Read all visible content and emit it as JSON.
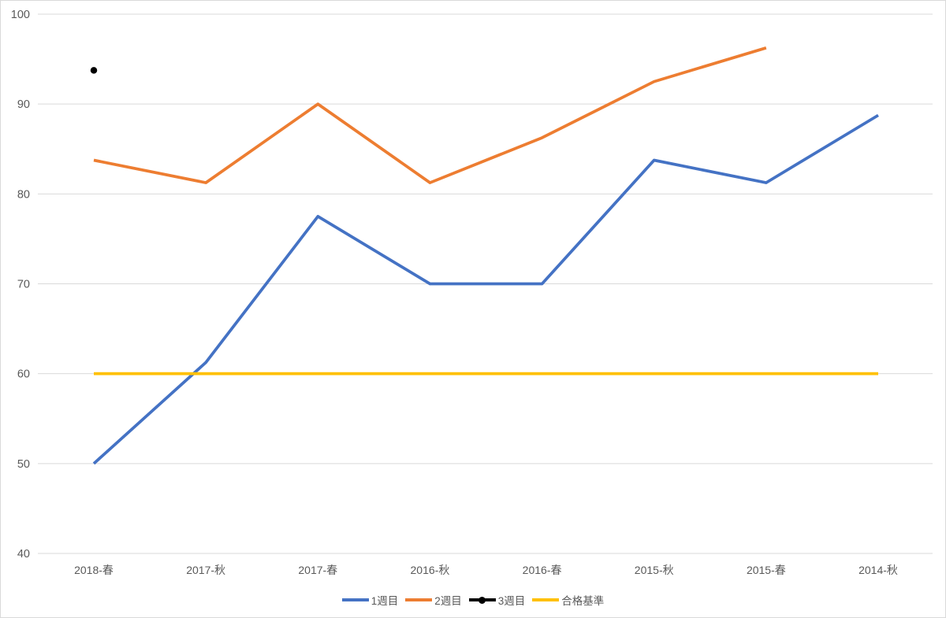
{
  "chart_data": {
    "type": "line",
    "title": "",
    "xlabel": "",
    "ylabel": "",
    "categories": [
      "2018-春",
      "2017-秋",
      "2017-春",
      "2016-秋",
      "2016-春",
      "2015-秋",
      "2015-春",
      "2014-秋"
    ],
    "series": [
      {
        "name": "1週目",
        "color": "#4472C4",
        "marker": "none",
        "values": [
          50,
          61.25,
          77.5,
          70,
          70,
          83.75,
          81.25,
          88.75
        ]
      },
      {
        "name": "2週目",
        "color": "#ED7D31",
        "marker": "none",
        "values": [
          83.75,
          81.25,
          90,
          81.25,
          86.25,
          92.5,
          96.25,
          null
        ]
      },
      {
        "name": "3週目",
        "color": "#000000",
        "marker": "circle",
        "values": [
          93.75,
          null,
          null,
          null,
          null,
          null,
          null,
          null
        ]
      },
      {
        "name": "合格基準",
        "color": "#FFC000",
        "marker": "none",
        "values": [
          60,
          60,
          60,
          60,
          60,
          60,
          60,
          60
        ]
      }
    ],
    "y_ticks": [
      40,
      50,
      60,
      70,
      80,
      90,
      100
    ],
    "ylim": [
      40,
      100
    ],
    "grid": "horizontal",
    "legend_position": "bottom"
  },
  "colors": {
    "background": "#FFFFFF",
    "border": "#D9D9D9",
    "gridline": "#D9D9D9",
    "axis_text": "#595959"
  }
}
